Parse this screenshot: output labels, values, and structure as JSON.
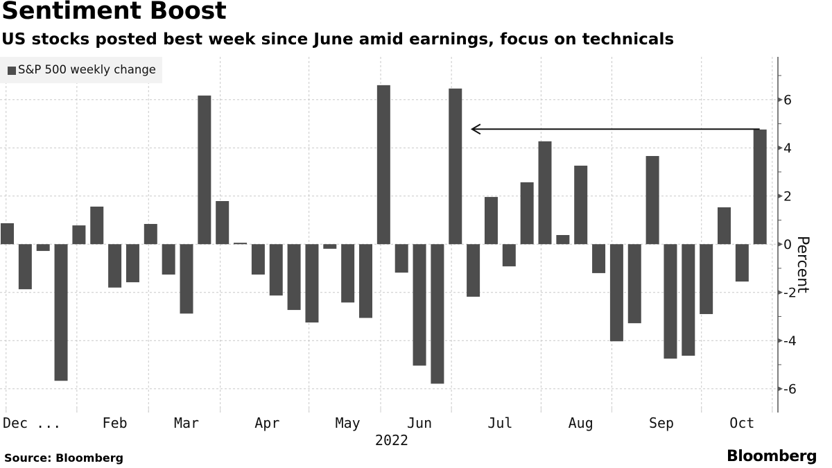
{
  "chart_data": {
    "type": "bar",
    "title": "Sentiment Boost",
    "subtitle": "US stocks posted best week since June amid earnings, focus on technicals",
    "legend": {
      "label": "S&P 500 weekly change",
      "position": "top-left",
      "color": "#4d4d4d"
    },
    "xlabel": "2022",
    "ylabel": "Percent",
    "ylim": [
      -7,
      7.7
    ],
    "yticks": [
      6,
      4,
      2,
      0,
      -2,
      -4,
      -6
    ],
    "ytick_labels": [
      "6",
      "4",
      "2",
      "0",
      "-2",
      "-4",
      "-6"
    ],
    "grid": true,
    "x_tick_labels": [
      "Dec ...",
      "Feb",
      "Mar",
      "Apr",
      "May",
      "Jun",
      "Jul",
      "Aug",
      "Sep",
      "Oct"
    ],
    "x_tick_label_week_index": [
      1,
      6,
      10,
      14.5,
      19,
      23,
      27.5,
      32,
      36.5,
      41
    ],
    "x_gridline_week_index": [
      0.3,
      4.25,
      8.25,
      12.25,
      17.2,
      21.2,
      25.15,
      30.15,
      34.1,
      39.1,
      43.05
    ],
    "series": [
      {
        "name": "S&P 500 weekly change",
        "values": [
          0.87,
          -1.87,
          -0.28,
          -5.67,
          0.78,
          1.56,
          -1.8,
          -1.58,
          0.84,
          -1.26,
          -2.88,
          6.17,
          1.79,
          0.06,
          -1.26,
          -2.13,
          -2.73,
          -3.25,
          -0.19,
          -2.42,
          -3.06,
          6.6,
          -1.18,
          -5.04,
          -5.79,
          6.46,
          -2.18,
          1.96,
          -0.92,
          2.57,
          4.27,
          0.38,
          3.26,
          -1.2,
          -4.03,
          -3.28,
          3.66,
          -4.75,
          -4.63,
          -2.9,
          1.53,
          -1.55,
          4.76
        ]
      }
    ],
    "annotations": [
      {
        "type": "arrow",
        "from_week_index": 42,
        "to_week_index": 26.3,
        "y_value": 4.76,
        "meaning": "latest week gain compared back to June week"
      }
    ],
    "bar_color": "#4d4d4d"
  },
  "footer": {
    "source": "Source: Bloomberg",
    "logo": "Bloomberg"
  }
}
